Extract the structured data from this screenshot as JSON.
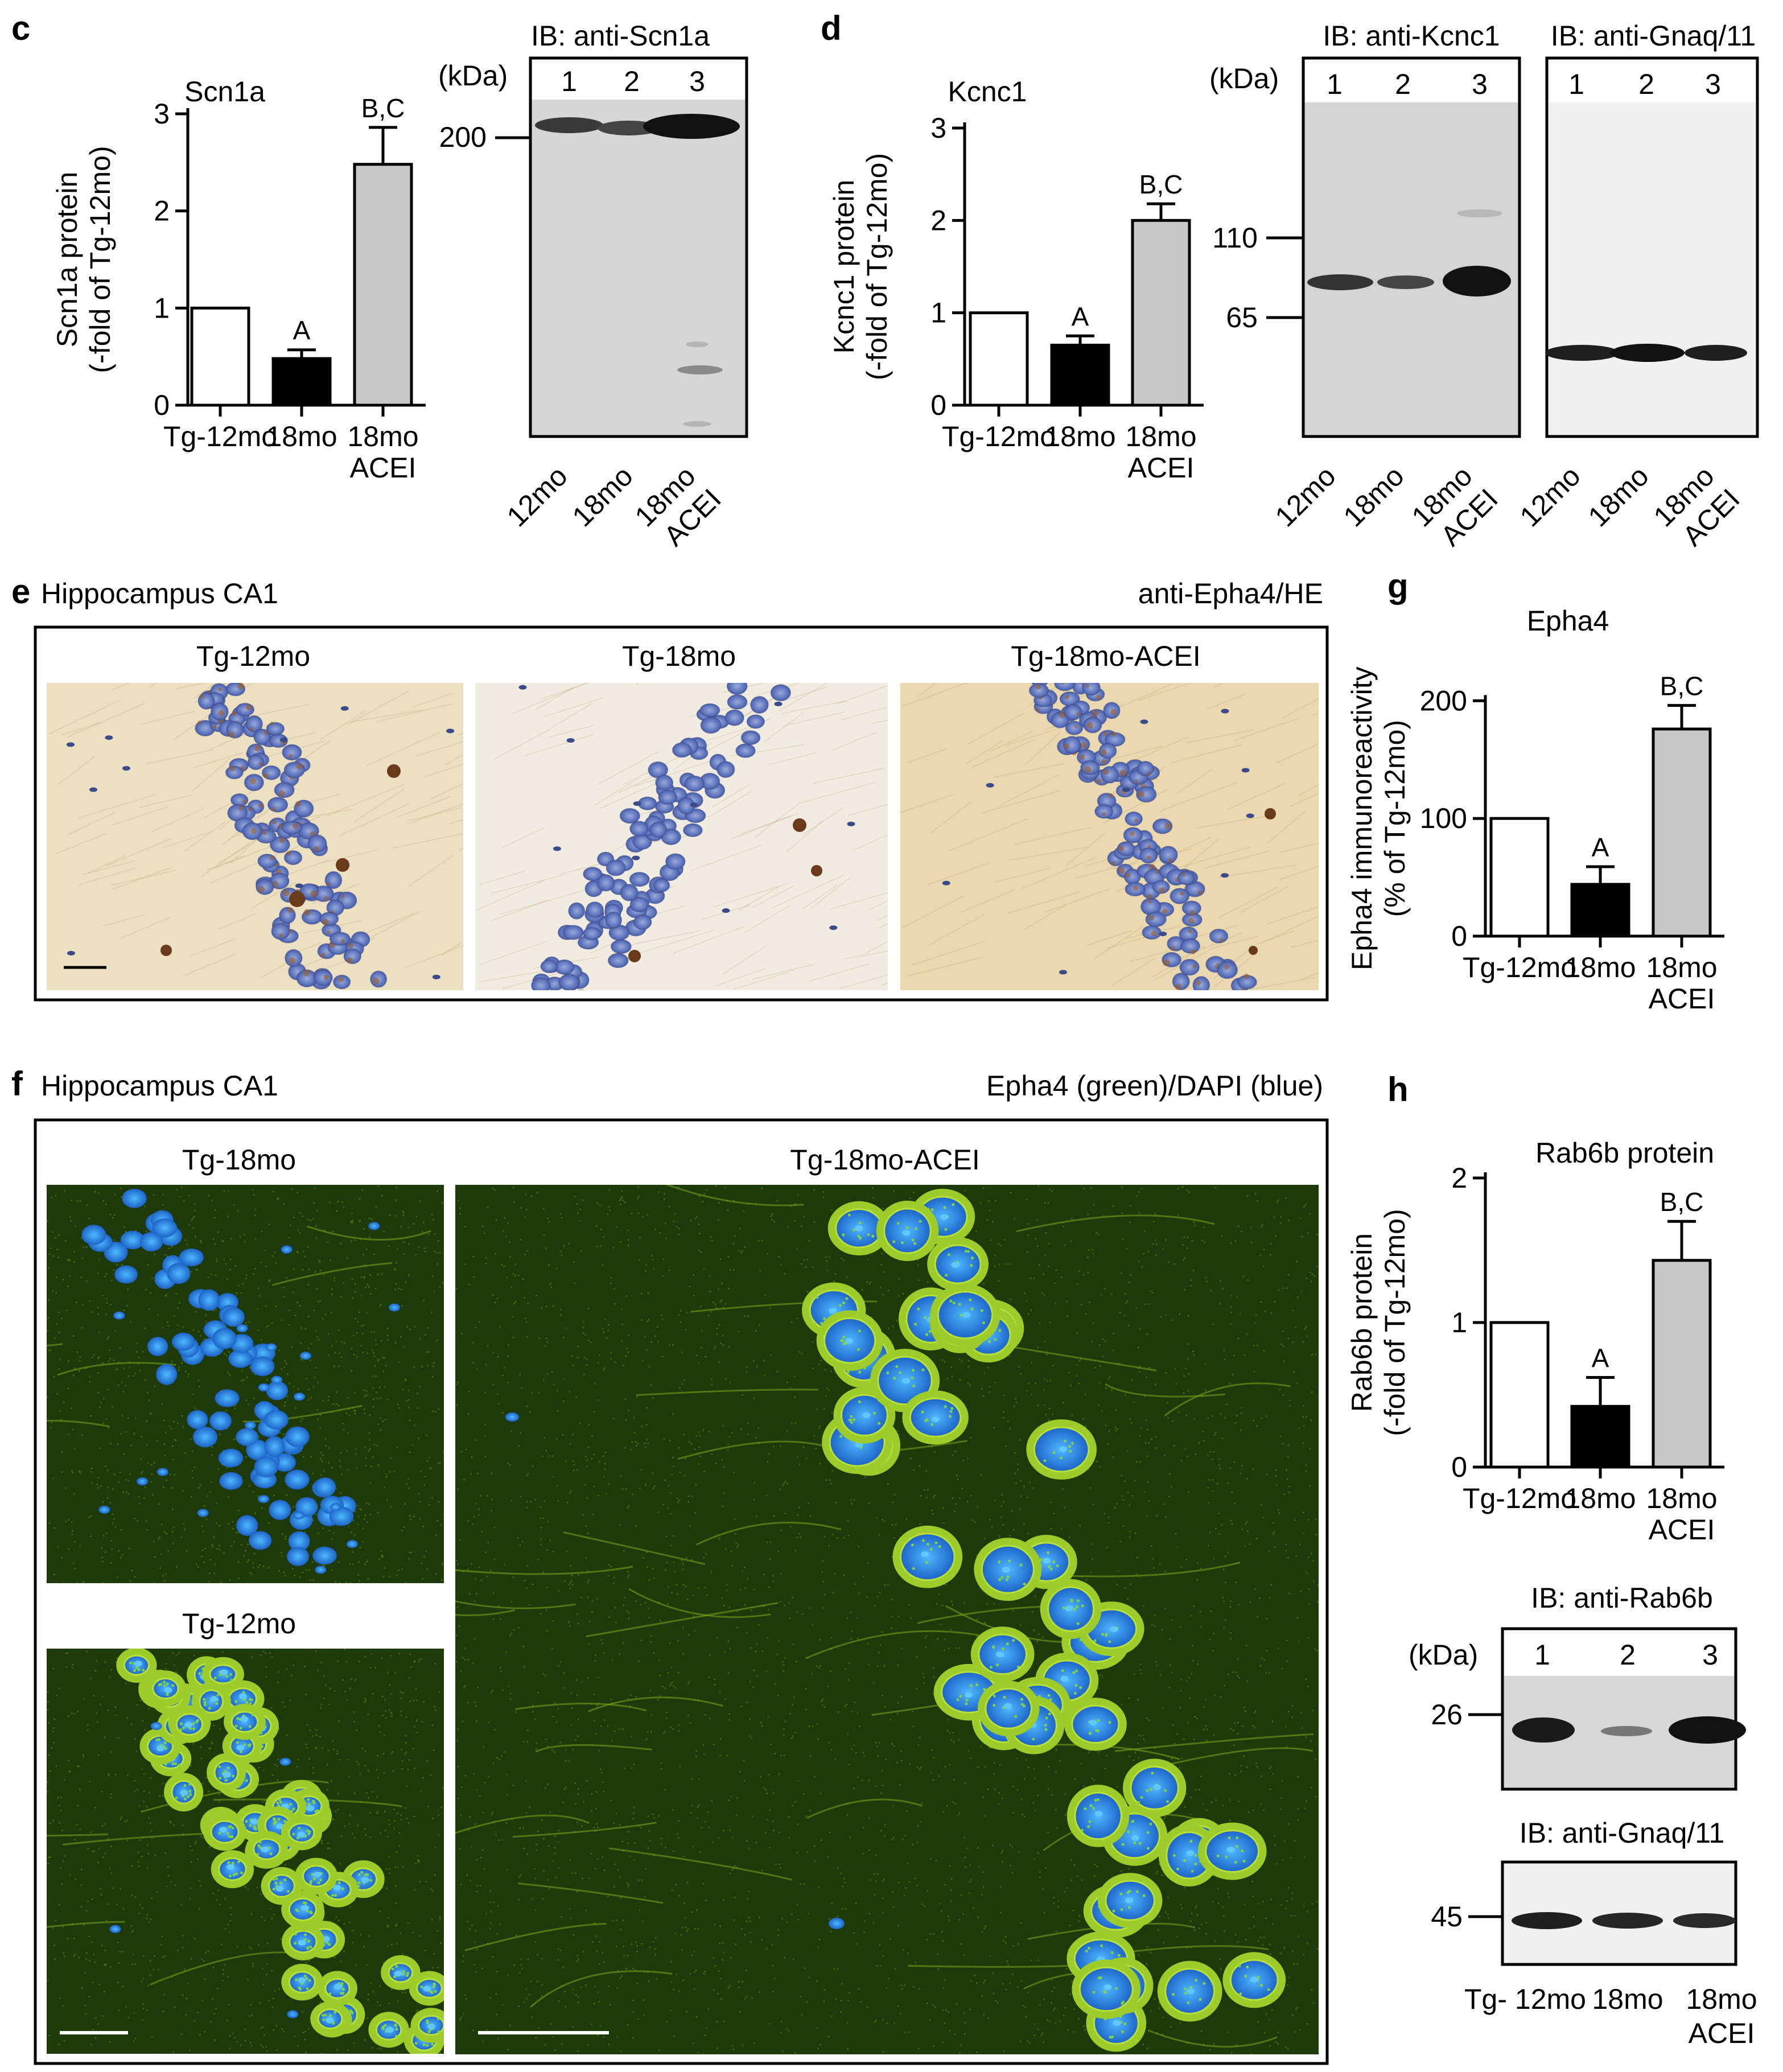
{
  "panel_labels": {
    "c": "c",
    "d": "d",
    "e": "e",
    "f": "f",
    "g": "g",
    "h": "h"
  },
  "chart_data": [
    {
      "id": "c",
      "type": "bar",
      "title": "Scn1a",
      "ylabel": "Scn1a protein\n(-fold of Tg-12mo)",
      "categories": [
        "Tg-12mo",
        "18mo",
        "18mo\nACEI"
      ],
      "values": [
        1,
        0.48,
        2.48
      ],
      "errors": [
        0,
        0.09,
        0.38
      ],
      "annotations": [
        "",
        "A",
        "B,C"
      ],
      "colors": [
        "#ffffff",
        "#000000",
        "#c8c8c8"
      ],
      "ylim": [
        0,
        3
      ],
      "yticks": [
        0,
        1,
        2,
        3
      ]
    },
    {
      "id": "d",
      "type": "bar",
      "title": "Kcnc1",
      "ylabel": "Kcnc1 protein\n(-fold of Tg-12mo)",
      "categories": [
        "Tg-12mo",
        "18mo",
        "18mo\nACEI"
      ],
      "values": [
        1,
        0.65,
        2.0
      ],
      "errors": [
        0,
        0.1,
        0.18
      ],
      "annotations": [
        "",
        "A",
        "B,C"
      ],
      "colors": [
        "#ffffff",
        "#000000",
        "#c8c8c8"
      ],
      "ylim": [
        0,
        3
      ],
      "yticks": [
        0,
        1,
        2,
        3
      ]
    },
    {
      "id": "g",
      "type": "bar",
      "title": "Epha4",
      "ylabel": "Epha4 immunoreactivity\n(% of Tg-12mo)",
      "categories": [
        "Tg-12mo",
        "18mo",
        "18mo\nACEI"
      ],
      "values": [
        100,
        44,
        176
      ],
      "errors": [
        0,
        15,
        20
      ],
      "annotations": [
        "",
        "A",
        "B,C"
      ],
      "colors": [
        "#ffffff",
        "#000000",
        "#c8c8c8"
      ],
      "ylim": [
        0,
        250
      ],
      "yticks": [
        0,
        100,
        200
      ]
    },
    {
      "id": "h",
      "type": "bar",
      "title": "Rab6b protein",
      "ylabel": "Rab6b protein\n(-fold of Tg-12mo)",
      "categories": [
        "Tg-12mo",
        "18mo",
        "18mo\nACEI"
      ],
      "values": [
        1,
        0.42,
        1.43
      ],
      "errors": [
        0,
        0.2,
        0.27
      ],
      "annotations": [
        "",
        "A",
        "B,C"
      ],
      "colors": [
        "#ffffff",
        "#000000",
        "#c8c8c8"
      ],
      "ylim": [
        0,
        2
      ],
      "yticks": [
        0,
        1,
        2
      ]
    }
  ],
  "blots": {
    "scn1a": {
      "title": "IB: anti-Scn1a",
      "kda": "(kDa)",
      "lanes": [
        "1",
        "2",
        "3"
      ],
      "markers": [
        "200"
      ],
      "bottom_labels": [
        "12mo",
        "18mo",
        "18mo\nACEI"
      ]
    },
    "kcnc1": {
      "title": "IB: anti-Kcnc1",
      "kda": "(kDa)",
      "lanes": [
        "1",
        "2",
        "3"
      ],
      "markers": [
        "110",
        "65"
      ],
      "bottom_labels": [
        "12mo",
        "18mo",
        "18mo\nACEI"
      ]
    },
    "gnaq_d": {
      "title": "IB: anti-Gnaq/11",
      "lanes": [
        "1",
        "2",
        "3"
      ],
      "bottom_labels": [
        "12mo",
        "18mo",
        "18mo\nACEI"
      ]
    },
    "rab6b": {
      "title": "IB: anti-Rab6b",
      "kda": "(kDa)",
      "lanes": [
        "1",
        "2",
        "3"
      ],
      "markers": [
        "26"
      ]
    },
    "gnaq_h": {
      "title": "IB: anti-Gnaq/11",
      "markers": [
        "45"
      ],
      "bottom_labels": [
        "Tg- 12mo",
        "18mo",
        "18mo\nACEI"
      ]
    }
  },
  "panel_e": {
    "region": "Hippocampus CA1",
    "stain": "anti-Epha4/HE",
    "images": [
      "Tg-12mo",
      "Tg-18mo",
      "Tg-18mo-ACEI"
    ]
  },
  "panel_f": {
    "region": "Hippocampus CA1",
    "stain": "Epha4 (green)/DAPI (blue)",
    "images": [
      "Tg-18mo",
      "Tg-12mo",
      "Tg-18mo-ACEI"
    ]
  }
}
